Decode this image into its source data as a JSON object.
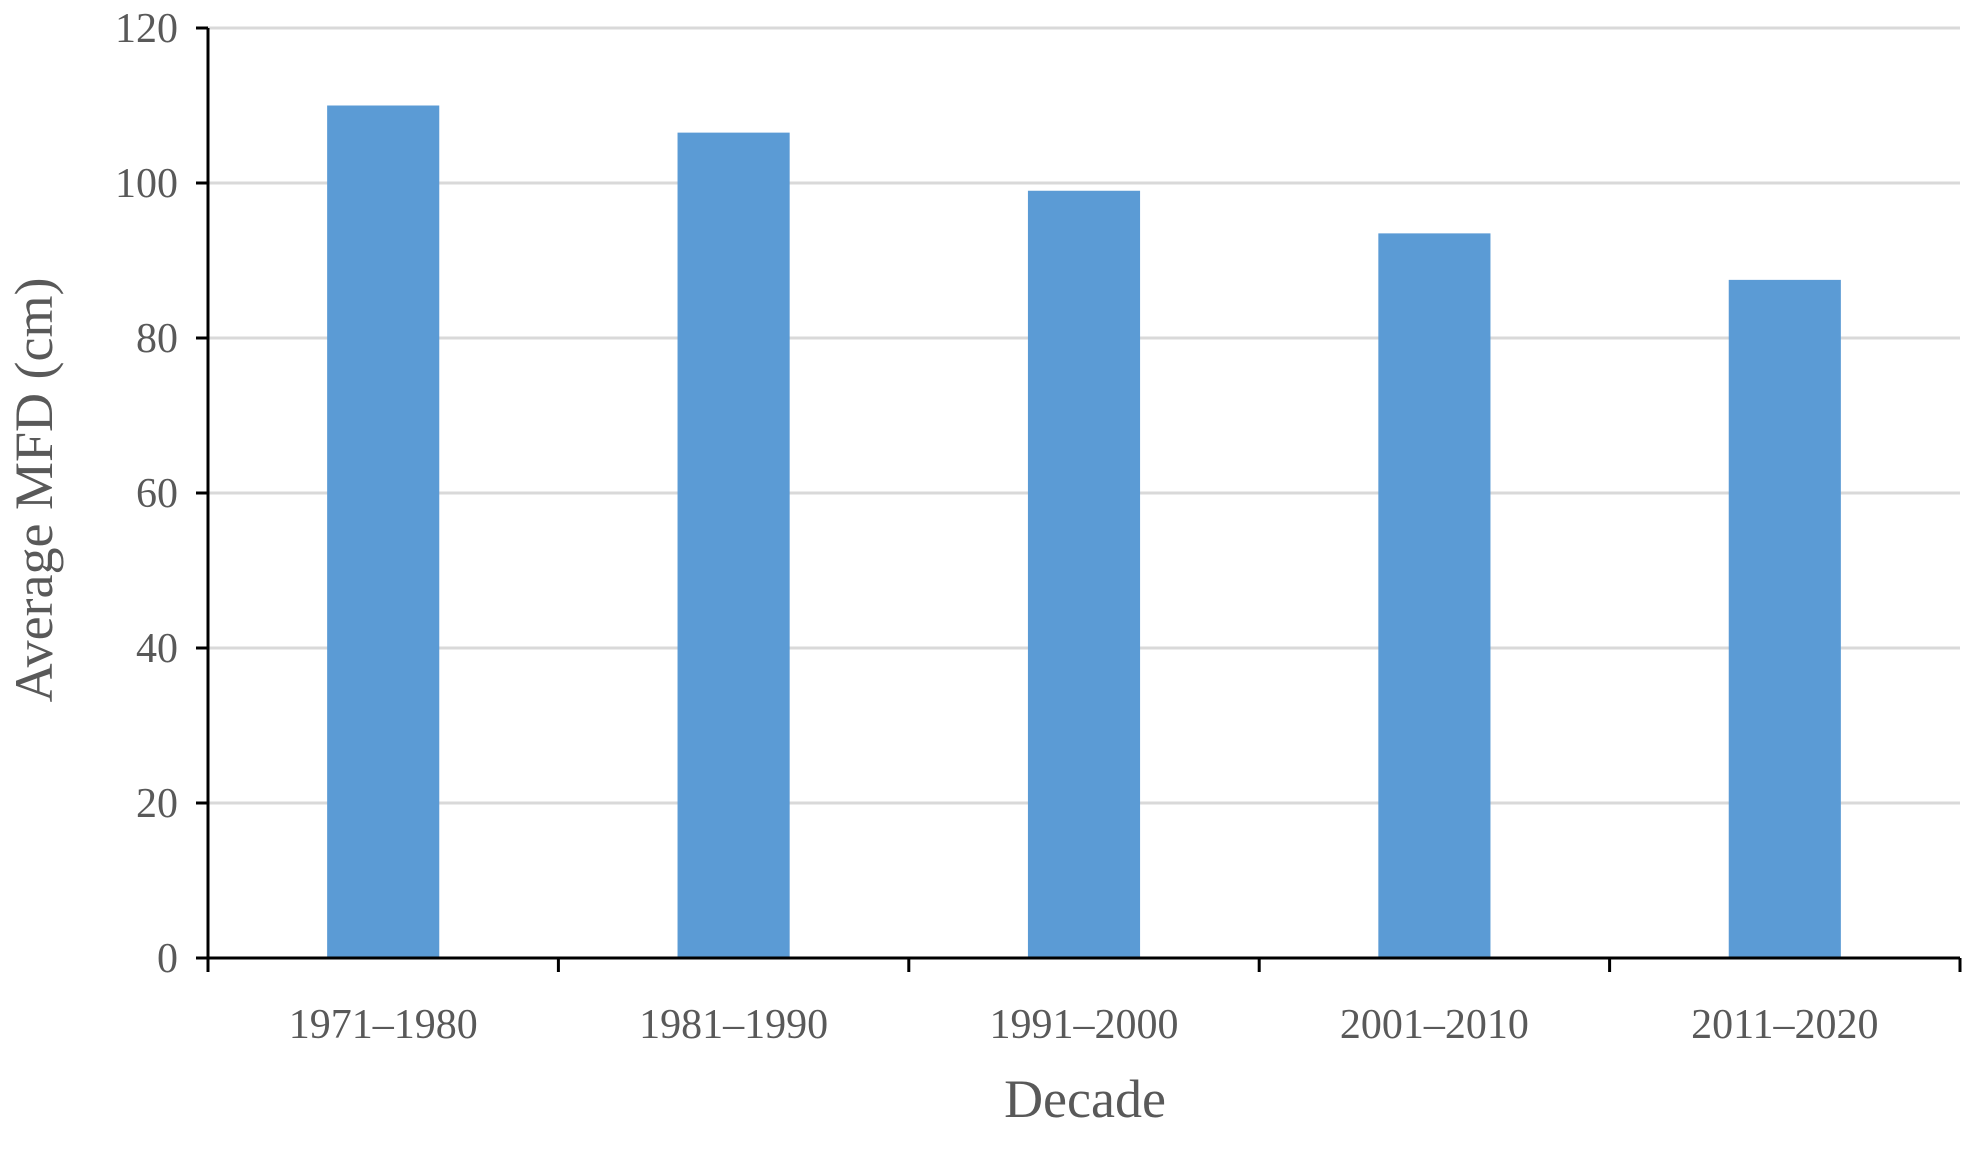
{
  "chart_data": {
    "type": "bar",
    "title": "",
    "xlabel": "Decade",
    "ylabel": "Average MFD (cm)",
    "categories": [
      "1971–1980",
      "1981–1990",
      "1991–2000",
      "2001–2010",
      "2011–2020"
    ],
    "values": [
      110,
      106.5,
      99,
      93.5,
      87.5
    ],
    "ylim": [
      0,
      120
    ],
    "yticks": [
      "0",
      "20",
      "40",
      "60",
      "80",
      "100",
      "120"
    ],
    "ytick_values": [
      0,
      20,
      40,
      60,
      80,
      100,
      120
    ],
    "grid": true,
    "legend": "none",
    "colors": {
      "bar": "#5B9BD5",
      "grid": "#D9D9D9",
      "axis": "#000000",
      "text": "#595959"
    }
  }
}
